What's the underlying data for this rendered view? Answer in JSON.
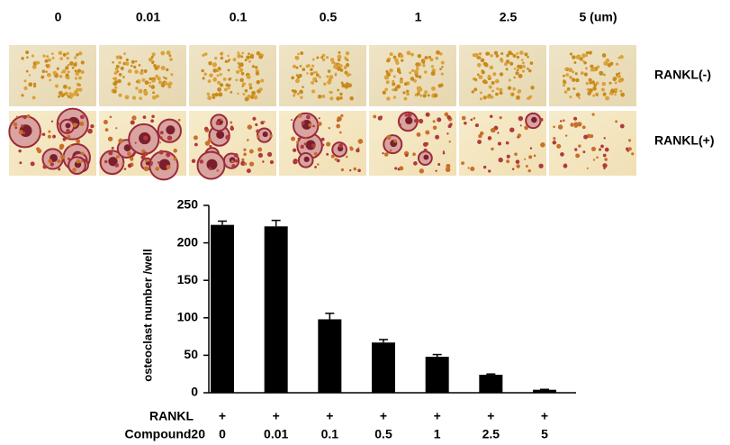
{
  "micrographs": {
    "columns": [
      "0",
      "0.01",
      "0.1",
      "0.5",
      "1",
      "2.5",
      "5 (um)"
    ],
    "rows": [
      "RANKL(-)",
      "RANKL(+)"
    ]
  },
  "chart_data": {
    "type": "bar",
    "y_label": "osteoclast number /well",
    "categories": [
      "0",
      "0.01",
      "0.1",
      "0.5",
      "1",
      "2.5",
      "5"
    ],
    "values": [
      224,
      222,
      98,
      67,
      48,
      24,
      4
    ],
    "errors": [
      5,
      8,
      8,
      4,
      3,
      1,
      0.5
    ],
    "color": "#000000",
    "ylim": [
      0,
      250
    ],
    "yticks": [
      0,
      50,
      100,
      150,
      200,
      250
    ],
    "row_labels": [
      "RANKL",
      "Compound20"
    ],
    "rankl": [
      "+",
      "+",
      "+",
      "+",
      "+",
      "+",
      "+"
    ]
  }
}
